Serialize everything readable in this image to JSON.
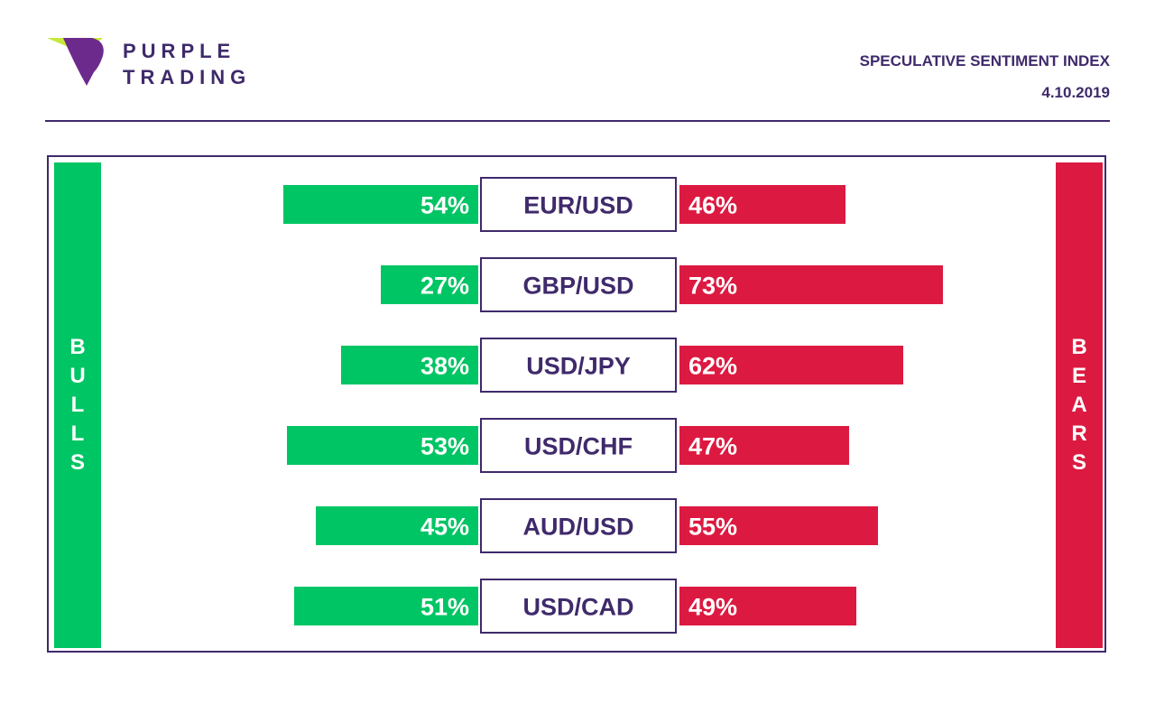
{
  "brand": {
    "line1": "PURPLE",
    "line2": "TRADING",
    "colors": {
      "purple": "#3f2a6b",
      "logo_purple": "#6b2a8c",
      "logo_green": "#c7e83a"
    }
  },
  "header": {
    "title": "SPECULATIVE SENTIMENT INDEX",
    "date": "4.10.2019"
  },
  "sides": {
    "bulls": [
      "B",
      "U",
      "L",
      "L",
      "S"
    ],
    "bears": [
      "B",
      "E",
      "A",
      "R",
      "S"
    ]
  },
  "chart_data": {
    "type": "bar",
    "categories": [
      "EUR/USD",
      "GBP/USD",
      "USD/JPY",
      "USD/CHF",
      "AUD/USD",
      "USD/CAD"
    ],
    "series": [
      {
        "values": [
          54,
          27,
          38,
          53,
          45,
          51
        ],
        "color": "#00c564"
      },
      {
        "values": [
          46,
          73,
          62,
          47,
          55,
          49
        ],
        "color": "#dc1a41"
      }
    ],
    "data_labels": {
      "bulls": [
        "54%",
        "27%",
        "38%",
        "53%",
        "45%",
        "51%"
      ],
      "bears": [
        "46%",
        "73%",
        "62%",
        "47%",
        "55%",
        "49%"
      ]
    },
    "legend": "none",
    "grid": false
  }
}
